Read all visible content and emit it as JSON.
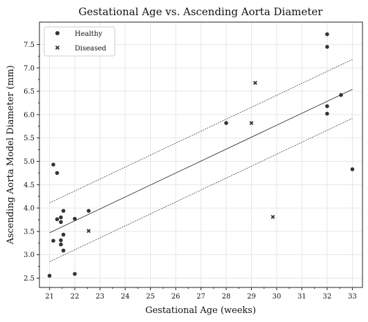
{
  "chart_data": {
    "type": "scatter",
    "title": "Gestational Age vs. Ascending Aorta Diameter",
    "xlabel": "Gestational Age (weeks)",
    "ylabel": "Ascending Aorta Model Diameter (mm)",
    "xlim": [
      20.6,
      33.4
    ],
    "ylim": [
      2.3,
      7.98
    ],
    "xticks": [
      "21",
      "22",
      "23",
      "24",
      "25",
      "26",
      "27",
      "28",
      "29",
      "30",
      "31",
      "32",
      "33"
    ],
    "yticks": [
      "2.5",
      "3.0",
      "3.5",
      "4.0",
      "4.5",
      "5.0",
      "5.5",
      "6.0",
      "6.5",
      "7.0",
      "7.5"
    ],
    "grid": true,
    "legend_position": "top-left",
    "series": [
      {
        "name": "Healthy",
        "marker": "circle",
        "color": "#333333",
        "points": [
          [
            21.0,
            2.55
          ],
          [
            21.15,
            4.93
          ],
          [
            21.15,
            3.3
          ],
          [
            21.3,
            4.75
          ],
          [
            21.3,
            3.76
          ],
          [
            21.45,
            3.8
          ],
          [
            21.45,
            3.7
          ],
          [
            21.45,
            3.31
          ],
          [
            21.45,
            3.22
          ],
          [
            21.55,
            3.94
          ],
          [
            21.55,
            3.43
          ],
          [
            21.55,
            3.09
          ],
          [
            22.0,
            3.77
          ],
          [
            22.0,
            2.59
          ],
          [
            22.55,
            3.94
          ],
          [
            28.0,
            5.82
          ],
          [
            32.0,
            7.72
          ],
          [
            32.0,
            7.45
          ],
          [
            32.0,
            6.18
          ],
          [
            32.0,
            6.02
          ],
          [
            32.55,
            6.42
          ],
          [
            33.0,
            4.83
          ]
        ]
      },
      {
        "name": "Diseased",
        "marker": "x",
        "color": "#333333",
        "points": [
          [
            22.55,
            3.51
          ],
          [
            29.0,
            5.82
          ],
          [
            29.15,
            6.68
          ],
          [
            29.85,
            3.81
          ]
        ]
      }
    ],
    "fit_line": {
      "x": [
        21.0,
        33.0
      ],
      "y": [
        3.47,
        6.54
      ]
    },
    "band_upper": {
      "x": [
        21.0,
        33.0
      ],
      "y": [
        4.11,
        7.18
      ]
    },
    "band_lower": {
      "x": [
        21.0,
        33.0
      ],
      "y": [
        2.85,
        5.92
      ]
    }
  }
}
